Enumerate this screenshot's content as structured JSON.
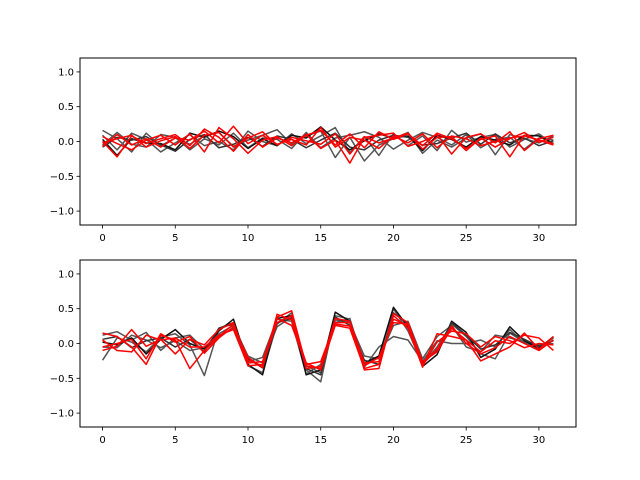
{
  "figure": {
    "background": "#ffffff"
  },
  "chart_data": [
    {
      "type": "line",
      "title": "",
      "xlabel": "",
      "ylabel": "",
      "xlim": [
        -1.55,
        32.55
      ],
      "ylim": [
        -1.2,
        1.2
      ],
      "xticks": [
        0,
        5,
        10,
        15,
        20,
        25,
        30
      ],
      "yticks": [
        -1.0,
        -0.5,
        0.0,
        0.5,
        1.0
      ],
      "xtick_labels": [
        "0",
        "5",
        "10",
        "15",
        "20",
        "25",
        "30"
      ],
      "ytick_labels": [
        "−1.0",
        "−0.5",
        "0.0",
        "0.5",
        "1.0"
      ],
      "grid": false,
      "legend": "none",
      "x": [
        0,
        1,
        2,
        3,
        4,
        5,
        6,
        7,
        8,
        9,
        10,
        11,
        12,
        13,
        14,
        15,
        16,
        17,
        18,
        19,
        20,
        21,
        22,
        23,
        24,
        25,
        26,
        27,
        28,
        29,
        30,
        31
      ],
      "series": [
        {
          "color": "#555555",
          "values": [
            0.16,
            0.04,
            -0.15,
            0.12,
            -0.06,
            0.05,
            -0.04,
            0.08,
            0.13,
            -0.07,
            0.02,
            0.09,
            0.17,
            -0.04,
            0.08,
            0.15,
            -0.23,
            0.06,
            -0.28,
            -0.05,
            0.04,
            0.13,
            -0.17,
            0.02,
            -0.08,
            0.05,
            0.11,
            -0.19,
            0.1,
            0.04,
            -0.02,
            0.08
          ]
        },
        {
          "color": "#555555",
          "values": [
            0.09,
            -0.12,
            0.12,
            0.03,
            -0.15,
            -0.02,
            0.1,
            -0.06,
            0.0,
            -0.12,
            0.15,
            0.0,
            -0.06,
            0.11,
            -0.03,
            0.08,
            0.2,
            -0.16,
            0.07,
            -0.2,
            0.11,
            -0.06,
            0.08,
            -0.13,
            0.16,
            -0.01,
            0.06,
            0.1,
            -0.08,
            0.03,
            0.11,
            -0.04
          ]
        },
        {
          "color": "#555555",
          "values": [
            -0.05,
            0.13,
            -0.04,
            -0.08,
            0.1,
            0.06,
            -0.12,
            0.04,
            -0.05,
            0.12,
            -0.09,
            0.05,
            0.03,
            -0.1,
            0.13,
            -0.09,
            0.05,
            0.09,
            0.14,
            0.06,
            -0.11,
            0.02,
            0.13,
            0.06,
            -0.05,
            0.1,
            -0.09,
            0.03,
            0.06,
            -0.11,
            0.05,
            0.02
          ]
        },
        {
          "color": "#111111",
          "values": [
            0.03,
            -0.2,
            0.04,
            -0.02,
            -0.03,
            -0.12,
            0.12,
            0.06,
            0.15,
            0.07,
            -0.1,
            0.04,
            -0.06,
            0.09,
            0.05,
            0.21,
            0.02,
            -0.12,
            0.01,
            0.11,
            0.05,
            0.08,
            -0.13,
            0.09,
            0.03,
            -0.08,
            0.07,
            0.02,
            -0.05,
            0.09,
            0.08,
            -0.03
          ]
        },
        {
          "color": "#333333",
          "values": [
            -0.08,
            0.06,
            0.02,
            0.07,
            -0.05,
            -0.14,
            0.03,
            0.1,
            -0.09,
            -0.04,
            0.06,
            -0.07,
            0.08,
            0.03,
            -0.09,
            0.02,
            0.12,
            -0.08,
            -0.12,
            0.02,
            0.09,
            0.06,
            -0.05,
            -0.03,
            0.05,
            0.12,
            -0.04,
            0.11,
            -0.02,
            0.05,
            -0.06,
            0.01
          ]
        },
        {
          "color": "#ff0000",
          "values": [
            0.0,
            -0.22,
            0.08,
            -0.03,
            0.04,
            0.1,
            -0.06,
            0.18,
            0.06,
            -0.14,
            0.1,
            -0.08,
            0.05,
            -0.02,
            0.1,
            -0.1,
            0.02,
            -0.31,
            0.06,
            0.09,
            0.12,
            -0.07,
            0.0,
            0.1,
            -0.18,
            0.06,
            0.11,
            -0.02,
            0.14,
            -0.13,
            0.04,
            0.09
          ]
        },
        {
          "color": "#ff0000",
          "values": [
            0.07,
            -0.03,
            -0.12,
            0.02,
            0.09,
            -0.05,
            0.11,
            -0.15,
            0.2,
            0.04,
            -0.17,
            0.02,
            0.07,
            -0.06,
            0.09,
            0.16,
            -0.05,
            0.11,
            -0.09,
            0.14,
            0.03,
            0.11,
            -0.06,
            0.12,
            0.04,
            -0.1,
            0.03,
            0.08,
            -0.22,
            0.09,
            0.02,
            -0.05
          ]
        },
        {
          "color": "#ff0000",
          "values": [
            -0.07,
            0.1,
            -0.05,
            0.04,
            -0.08,
            0.05,
            0.02,
            0.15,
            -0.02,
            0.22,
            -0.03,
            0.09,
            -0.04,
            0.03,
            -0.05,
            0.2,
            -0.08,
            0.06,
            0.02,
            -0.1,
            0.08,
            -0.02,
            0.11,
            -0.09,
            0.08,
            0.04,
            -0.06,
            0.0,
            0.05,
            0.08,
            0.02,
            -0.03
          ]
        },
        {
          "color": "#ff0000",
          "values": [
            -0.02,
            0.04,
            0.09,
            -0.08,
            0.01,
            0.07,
            -0.1,
            0.09,
            0.13,
            -0.08,
            0.05,
            0.14,
            -0.05,
            0.06,
            0.01,
            -0.04,
            0.11,
            -0.18,
            0.07,
            -0.02,
            0.05,
            0.12,
            -0.11,
            0.06,
            0.07,
            -0.13,
            0.05,
            -0.08,
            0.04,
            0.13,
            -0.01,
            0.06
          ]
        }
      ]
    },
    {
      "type": "line",
      "title": "",
      "xlabel": "",
      "ylabel": "",
      "xlim": [
        -1.55,
        32.55
      ],
      "ylim": [
        -1.2,
        1.2
      ],
      "xticks": [
        0,
        5,
        10,
        15,
        20,
        25,
        30
      ],
      "yticks": [
        -1.0,
        -0.5,
        0.0,
        0.5,
        1.0
      ],
      "xtick_labels": [
        "0",
        "5",
        "10",
        "15",
        "20",
        "25",
        "30"
      ],
      "ytick_labels": [
        "−1.0",
        "−0.5",
        "0.0",
        "0.5",
        "1.0"
      ],
      "grid": false,
      "legend": "none",
      "x": [
        0,
        1,
        2,
        3,
        4,
        5,
        6,
        7,
        8,
        9,
        10,
        11,
        12,
        13,
        14,
        15,
        16,
        17,
        18,
        19,
        20,
        21,
        22,
        23,
        24,
        25,
        26,
        27,
        28,
        29,
        30,
        31
      ],
      "series": [
        {
          "color": "#555555",
          "values": [
            -0.24,
            0.08,
            0.02,
            -0.12,
            0.09,
            0.14,
            -0.02,
            -0.46,
            0.22,
            0.3,
            -0.32,
            -0.42,
            0.28,
            0.44,
            -0.38,
            -0.55,
            0.4,
            0.35,
            -0.3,
            -0.2,
            0.5,
            0.18,
            -0.3,
            -0.05,
            0.28,
            0.1,
            -0.15,
            -0.22,
            0.15,
            0.02,
            -0.08,
            0.05
          ]
        },
        {
          "color": "#555555",
          "values": [
            0.12,
            0.17,
            0.05,
            0.16,
            -0.1,
            0.08,
            0.12,
            -0.08,
            0.14,
            0.26,
            -0.18,
            -0.28,
            0.24,
            0.38,
            -0.32,
            -0.42,
            0.34,
            0.3,
            -0.18,
            -0.22,
            0.26,
            0.32,
            -0.22,
            0.1,
            0.26,
            -0.05,
            -0.12,
            0.12,
            0.08,
            0.02,
            -0.02,
            0.0
          ]
        },
        {
          "color": "#555555",
          "values": [
            -0.05,
            -0.06,
            0.12,
            0.05,
            -0.06,
            0.04,
            -0.1,
            -0.06,
            0.1,
            0.22,
            -0.26,
            -0.2,
            0.35,
            0.32,
            -0.44,
            -0.3,
            0.3,
            0.36,
            -0.34,
            -0.05,
            0.1,
            0.05,
            -0.26,
            0.04,
            0.0,
            0.0,
            0.05,
            -0.05,
            0.2,
            0.0,
            -0.05,
            0.08
          ]
        },
        {
          "color": "#111111",
          "values": [
            0.02,
            -0.02,
            0.08,
            -0.15,
            0.06,
            0.2,
            0.0,
            -0.08,
            0.18,
            0.35,
            -0.3,
            -0.45,
            0.36,
            0.4,
            -0.45,
            -0.38,
            0.45,
            0.32,
            -0.28,
            -0.18,
            0.52,
            0.24,
            -0.33,
            -0.16,
            0.32,
            0.16,
            -0.2,
            -0.08,
            0.24,
            0.04,
            -0.07,
            0.1
          ]
        },
        {
          "color": "#333333",
          "values": [
            0.06,
            0.1,
            -0.06,
            0.04,
            0.08,
            -0.05,
            0.06,
            -0.12,
            0.22,
            0.28,
            -0.22,
            -0.35,
            0.3,
            0.36,
            -0.36,
            -0.45,
            0.38,
            0.26,
            -0.24,
            -0.3,
            0.44,
            0.28,
            -0.28,
            -0.1,
            0.3,
            0.12,
            -0.08,
            -0.02,
            0.16,
            0.06,
            -0.04,
            0.04
          ]
        },
        {
          "color": "#ff0000",
          "values": [
            0.15,
            0.1,
            -0.05,
            -0.3,
            0.12,
            0.05,
            -0.36,
            -0.1,
            0.1,
            0.28,
            -0.24,
            -0.32,
            0.38,
            0.47,
            -0.32,
            -0.36,
            0.26,
            0.22,
            -0.36,
            -0.3,
            0.4,
            0.22,
            -0.34,
            0.14,
            0.1,
            0.05,
            -0.25,
            -0.15,
            -0.05,
            0.15,
            -0.08,
            0.1
          ]
        },
        {
          "color": "#ff0000",
          "values": [
            -0.1,
            -0.04,
            0.2,
            -0.04,
            0.06,
            -0.15,
            0.06,
            -0.02,
            0.2,
            0.3,
            -0.28,
            -0.26,
            0.36,
            0.26,
            -0.3,
            -0.26,
            0.3,
            0.3,
            -0.38,
            -0.36,
            0.43,
            0.3,
            -0.26,
            -0.12,
            0.22,
            0.05,
            -0.12,
            0.04,
            0.0,
            0.12,
            0.08,
            -0.1
          ]
        },
        {
          "color": "#ff0000",
          "values": [
            0.05,
            -0.1,
            -0.12,
            0.12,
            0.05,
            0.08,
            -0.05,
            -0.05,
            0.12,
            0.2,
            -0.32,
            -0.3,
            0.3,
            0.4,
            -0.36,
            -0.33,
            0.36,
            0.32,
            -0.28,
            -0.26,
            0.35,
            0.26,
            -0.32,
            0.02,
            0.18,
            0.14,
            -0.05,
            0.1,
            0.04,
            -0.06,
            0.0,
            -0.02
          ]
        },
        {
          "color": "#ff0000",
          "values": [
            -0.05,
            0.0,
            0.06,
            -0.22,
            0.14,
            0.02,
            0.1,
            -0.14,
            0.08,
            0.24,
            -0.2,
            -0.35,
            0.42,
            0.34,
            -0.28,
            -0.38,
            0.28,
            0.25,
            -0.32,
            -0.2,
            0.3,
            0.28,
            -0.3,
            -0.08,
            0.25,
            0.0,
            -0.15,
            -0.06,
            0.1,
            0.0,
            -0.1,
            0.05
          ]
        }
      ]
    }
  ]
}
